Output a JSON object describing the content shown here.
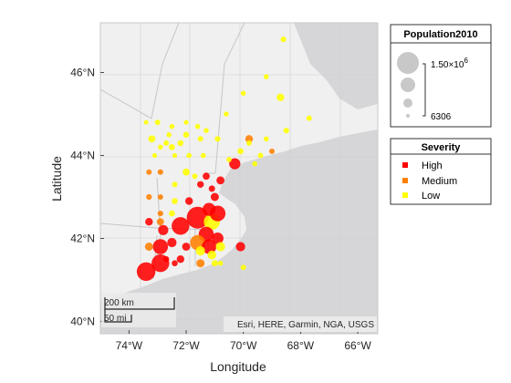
{
  "map": {
    "xlabel": "Longitude",
    "ylabel": "Latitude",
    "xlim": [
      -75.0,
      -65.3
    ],
    "ylim": [
      39.7,
      47.2
    ],
    "x_ticks": [
      {
        "value": -74,
        "label": "74°W"
      },
      {
        "value": -72,
        "label": "72°W"
      },
      {
        "value": -70,
        "label": "70°W"
      },
      {
        "value": -68,
        "label": "68°W"
      },
      {
        "value": -66,
        "label": "66°W"
      }
    ],
    "y_ticks": [
      {
        "value": 40,
        "label": "40°N"
      },
      {
        "value": 42,
        "label": "42°N"
      },
      {
        "value": 44,
        "label": "44°N"
      },
      {
        "value": 46,
        "label": "46°N"
      }
    ],
    "attribution": "Esri, HERE, Garmin, NGA, USGS",
    "scalebar": {
      "km_label": "200 km",
      "mi_label": "50 mi"
    },
    "colors": {
      "land": "#f0f0f0",
      "water": "#d6d6d9",
      "border": "#c6c6c8",
      "High": "#ff0000",
      "Medium": "#ff8000",
      "Low": "#ffff00"
    }
  },
  "legend_size": {
    "title": "Population2010",
    "max_label_base": "1.50×10",
    "max_label_exp": "6",
    "min_label": "6306"
  },
  "legend_severity": {
    "title": "Severity",
    "items": [
      {
        "label": "High",
        "color": "#ff0000"
      },
      {
        "label": "Medium",
        "color": "#ff8000"
      },
      {
        "label": "Low",
        "color": "#ffff00"
      }
    ]
  },
  "chart_data": {
    "type": "scatter",
    "x_variable": "Longitude",
    "y_variable": "Latitude",
    "size_variable": "Population2010",
    "size_range": [
      6306,
      1500000
    ],
    "color_variable": "Severity",
    "points": [
      {
        "lon": -68.6,
        "lat": 46.8,
        "pop": 25000,
        "severity": "Low"
      },
      {
        "lon": -69.2,
        "lat": 45.9,
        "pop": 15000,
        "severity": "Low"
      },
      {
        "lon": -70.0,
        "lat": 45.5,
        "pop": 15000,
        "severity": "Low"
      },
      {
        "lon": -68.7,
        "lat": 45.4,
        "pop": 80000,
        "severity": "Low"
      },
      {
        "lon": -70.6,
        "lat": 45.0,
        "pop": 15000,
        "severity": "Low"
      },
      {
        "lon": -67.7,
        "lat": 44.9,
        "pop": 20000,
        "severity": "Low"
      },
      {
        "lon": -68.5,
        "lat": 44.6,
        "pop": 25000,
        "severity": "Low"
      },
      {
        "lon": -69.8,
        "lat": 44.3,
        "pop": 20000,
        "severity": "Low"
      },
      {
        "lon": -69.2,
        "lat": 44.4,
        "pop": 15000,
        "severity": "Low"
      },
      {
        "lon": -70.1,
        "lat": 44.1,
        "pop": 35000,
        "severity": "Low"
      },
      {
        "lon": -69.4,
        "lat": 44.0,
        "pop": 20000,
        "severity": "Low"
      },
      {
        "lon": -70.5,
        "lat": 43.9,
        "pop": 18000,
        "severity": "Low"
      },
      {
        "lon": -69.6,
        "lat": 43.8,
        "pop": 15000,
        "severity": "Low"
      },
      {
        "lon": -69.8,
        "lat": 44.4,
        "pop": 80000,
        "severity": "Medium"
      },
      {
        "lon": -69.0,
        "lat": 44.1,
        "pop": 20000,
        "severity": "Medium"
      },
      {
        "lon": -73.4,
        "lat": 44.8,
        "pop": 10000,
        "severity": "Low"
      },
      {
        "lon": -73.0,
        "lat": 44.8,
        "pop": 20000,
        "severity": "Low"
      },
      {
        "lon": -72.5,
        "lat": 44.7,
        "pop": 15000,
        "severity": "Low"
      },
      {
        "lon": -72.0,
        "lat": 44.8,
        "pop": 12000,
        "severity": "Low"
      },
      {
        "lon": -71.6,
        "lat": 44.7,
        "pop": 15000,
        "severity": "Low"
      },
      {
        "lon": -72.6,
        "lat": 44.5,
        "pop": 15000,
        "severity": "Low"
      },
      {
        "lon": -73.2,
        "lat": 44.4,
        "pop": 60000,
        "severity": "Low"
      },
      {
        "lon": -72.0,
        "lat": 44.5,
        "pop": 30000,
        "severity": "Low"
      },
      {
        "lon": -71.3,
        "lat": 44.6,
        "pop": 15000,
        "severity": "Low"
      },
      {
        "lon": -71.5,
        "lat": 44.4,
        "pop": 20000,
        "severity": "Low"
      },
      {
        "lon": -70.9,
        "lat": 44.4,
        "pop": 25000,
        "severity": "Low"
      },
      {
        "lon": -72.2,
        "lat": 44.3,
        "pop": 30000,
        "severity": "Low"
      },
      {
        "lon": -72.7,
        "lat": 44.3,
        "pop": 20000,
        "severity": "Low"
      },
      {
        "lon": -72.5,
        "lat": 44.2,
        "pop": 35000,
        "severity": "Low"
      },
      {
        "lon": -72.9,
        "lat": 44.2,
        "pop": 15000,
        "severity": "Low"
      },
      {
        "lon": -71.9,
        "lat": 44.0,
        "pop": 15000,
        "severity": "Low"
      },
      {
        "lon": -73.1,
        "lat": 44.0,
        "pop": 12000,
        "severity": "Low"
      },
      {
        "lon": -72.4,
        "lat": 44.0,
        "pop": 12000,
        "severity": "Low"
      },
      {
        "lon": -71.4,
        "lat": 44.0,
        "pop": 15000,
        "severity": "Low"
      },
      {
        "lon": -73.3,
        "lat": 43.6,
        "pop": 20000,
        "severity": "Medium"
      },
      {
        "lon": -72.9,
        "lat": 43.6,
        "pop": 25000,
        "severity": "Medium"
      },
      {
        "lon": -72.0,
        "lat": 43.6,
        "pop": 60000,
        "severity": "Low"
      },
      {
        "lon": -71.7,
        "lat": 43.5,
        "pop": 20000,
        "severity": "Low"
      },
      {
        "lon": -71.3,
        "lat": 43.5,
        "pop": 60000,
        "severity": "High"
      },
      {
        "lon": -72.4,
        "lat": 43.3,
        "pop": 20000,
        "severity": "Low"
      },
      {
        "lon": -71.1,
        "lat": 43.2,
        "pop": 40000,
        "severity": "High"
      },
      {
        "lon": -70.8,
        "lat": 43.4,
        "pop": 90000,
        "severity": "High"
      },
      {
        "lon": -70.3,
        "lat": 43.8,
        "pop": 260000,
        "severity": "High"
      },
      {
        "lon": -73.3,
        "lat": 43.0,
        "pop": 25000,
        "severity": "Medium"
      },
      {
        "lon": -72.9,
        "lat": 43.0,
        "pop": 20000,
        "severity": "Medium"
      },
      {
        "lon": -72.4,
        "lat": 42.9,
        "pop": 30000,
        "severity": "Low"
      },
      {
        "lon": -71.9,
        "lat": 42.9,
        "pop": 80000,
        "severity": "High"
      },
      {
        "lon": -71.5,
        "lat": 43.3,
        "pop": 50000,
        "severity": "High"
      },
      {
        "lon": -71.0,
        "lat": 43.0,
        "pop": 100000,
        "severity": "High"
      },
      {
        "lon": -72.5,
        "lat": 42.6,
        "pop": 30000,
        "severity": "Low"
      },
      {
        "lon": -72.9,
        "lat": 42.6,
        "pop": 25000,
        "severity": "Medium"
      },
      {
        "lon": -71.2,
        "lat": 42.7,
        "pop": 400000,
        "severity": "High"
      },
      {
        "lon": -70.9,
        "lat": 42.6,
        "pop": 650000,
        "severity": "High"
      },
      {
        "lon": -73.3,
        "lat": 42.4,
        "pop": 80000,
        "severity": "High"
      },
      {
        "lon": -72.9,
        "lat": 42.4,
        "pop": 60000,
        "severity": "Medium"
      },
      {
        "lon": -72.2,
        "lat": 42.3,
        "pop": 900000,
        "severity": "High"
      },
      {
        "lon": -71.6,
        "lat": 42.5,
        "pop": 1500000,
        "severity": "High"
      },
      {
        "lon": -71.1,
        "lat": 42.4,
        "pop": 700000,
        "severity": "Low"
      },
      {
        "lon": -72.8,
        "lat": 42.2,
        "pop": 200000,
        "severity": "High"
      },
      {
        "lon": -71.3,
        "lat": 42.1,
        "pop": 600000,
        "severity": "High"
      },
      {
        "lon": -70.9,
        "lat": 42.0,
        "pop": 300000,
        "severity": "High"
      },
      {
        "lon": -73.3,
        "lat": 41.8,
        "pop": 100000,
        "severity": "Medium"
      },
      {
        "lon": -72.9,
        "lat": 41.8,
        "pop": 600000,
        "severity": "High"
      },
      {
        "lon": -72.5,
        "lat": 41.9,
        "pop": 150000,
        "severity": "High"
      },
      {
        "lon": -72.0,
        "lat": 41.8,
        "pop": 90000,
        "severity": "High"
      },
      {
        "lon": -71.6,
        "lat": 41.9,
        "pop": 600000,
        "severity": "Medium"
      },
      {
        "lon": -71.2,
        "lat": 41.8,
        "pop": 550000,
        "severity": "High"
      },
      {
        "lon": -70.8,
        "lat": 41.8,
        "pop": 150000,
        "severity": "Low"
      },
      {
        "lon": -70.1,
        "lat": 41.8,
        "pop": 150000,
        "severity": "High"
      },
      {
        "lon": -71.5,
        "lat": 41.7,
        "pop": 150000,
        "severity": "Low"
      },
      {
        "lon": -71.1,
        "lat": 41.6,
        "pop": 120000,
        "severity": "Low"
      },
      {
        "lon": -72.2,
        "lat": 41.5,
        "pop": 80000,
        "severity": "High"
      },
      {
        "lon": -72.7,
        "lat": 41.5,
        "pop": 30000,
        "severity": "High"
      },
      {
        "lon": -71.5,
        "lat": 41.4,
        "pop": 100000,
        "severity": "Medium"
      },
      {
        "lon": -72.9,
        "lat": 41.4,
        "pop": 900000,
        "severity": "High"
      },
      {
        "lon": -73.4,
        "lat": 41.2,
        "pop": 1000000,
        "severity": "High"
      },
      {
        "lon": -72.4,
        "lat": 41.4,
        "pop": 30000,
        "severity": "High"
      },
      {
        "lon": -71.0,
        "lat": 41.4,
        "pop": 40000,
        "severity": "Low"
      },
      {
        "lon": -70.8,
        "lat": 41.4,
        "pop": 15000,
        "severity": "Low"
      },
      {
        "lon": -70.0,
        "lat": 41.3,
        "pop": 20000,
        "severity": "Low"
      }
    ]
  }
}
